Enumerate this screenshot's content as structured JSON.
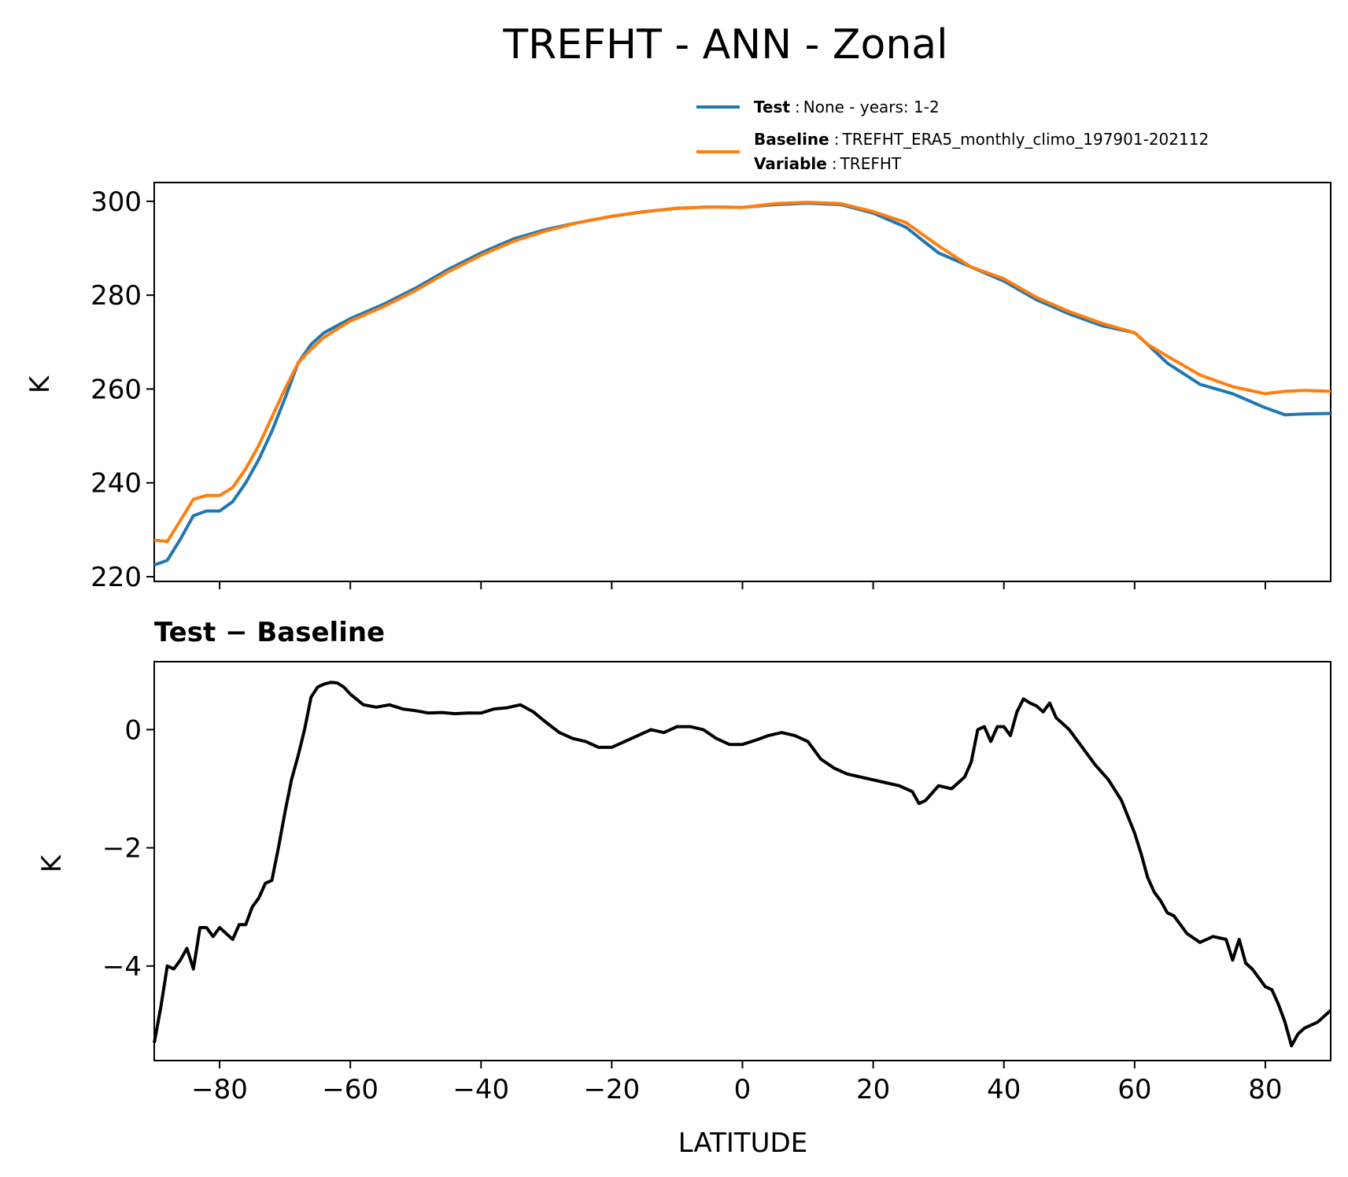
{
  "chart_data": [
    {
      "type": "line",
      "title": "TREFHT - ANN - Zonal",
      "xlabel": "",
      "ylabel": "K",
      "xlim": [
        -90,
        90
      ],
      "ylim": [
        219,
        304
      ],
      "yticks": [
        220,
        240,
        260,
        280,
        300
      ],
      "xticks": [
        -80,
        -60,
        -40,
        -20,
        0,
        20,
        40,
        60,
        80
      ],
      "legend": {
        "placement": "top-right",
        "entries": [
          {
            "bold": "Test",
            "sep": ":",
            "text": "None - years: 1-2",
            "color": "#1f77b4"
          },
          {
            "bold": "Baseline",
            "sep": ":",
            "text": "TREFHT_ERA5_monthly_climo_197901-202112",
            "bold2": "Variable",
            "text2": "TREFHT",
            "color": "#ff7f0e"
          }
        ]
      },
      "series": [
        {
          "name": "Test",
          "color": "#1f77b4",
          "x": [
            -90,
            -88,
            -86,
            -84,
            -82,
            -80,
            -78,
            -76,
            -74,
            -72,
            -70,
            -68,
            -66,
            -64,
            -62,
            -60,
            -55,
            -50,
            -45,
            -40,
            -35,
            -30,
            -25,
            -20,
            -15,
            -10,
            -5,
            0,
            5,
            10,
            15,
            20,
            25,
            30,
            35,
            40,
            45,
            50,
            55,
            60,
            62,
            65,
            70,
            75,
            80,
            83,
            86,
            90
          ],
          "values": [
            222.5,
            223.5,
            228,
            233,
            234,
            234,
            236,
            240,
            245,
            251,
            258,
            265.5,
            269.5,
            272,
            273.5,
            275,
            278,
            281.5,
            285.5,
            289,
            292,
            294,
            295.5,
            296.8,
            297.8,
            298.5,
            298.8,
            298.7,
            299.3,
            299.6,
            299.3,
            297.5,
            294.5,
            289,
            286,
            283,
            279,
            276,
            273.5,
            272,
            269.5,
            265.5,
            261,
            259,
            256,
            254.5,
            254.7,
            254.8
          ],
          "note": "curve values estimated from the plot"
        },
        {
          "name": "Baseline",
          "color": "#ff7f0e",
          "x": [
            -90,
            -88,
            -86,
            -84,
            -82,
            -80,
            -78,
            -76,
            -74,
            -72,
            -70,
            -68,
            -66,
            -64,
            -62,
            -60,
            -55,
            -50,
            -45,
            -40,
            -35,
            -30,
            -25,
            -20,
            -15,
            -10,
            -5,
            0,
            5,
            10,
            15,
            20,
            25,
            30,
            35,
            40,
            45,
            50,
            55,
            60,
            62,
            65,
            70,
            75,
            80,
            83,
            86,
            90
          ],
          "values": [
            227.8,
            227.5,
            232,
            236.5,
            237.3,
            237.3,
            239,
            243,
            248,
            254,
            260,
            265.5,
            268.5,
            271,
            272.8,
            274.5,
            277.5,
            281,
            285,
            288.5,
            291.5,
            293.7,
            295.5,
            296.8,
            297.8,
            298.5,
            298.8,
            298.7,
            299.5,
            299.8,
            299.5,
            297.8,
            295.5,
            290.5,
            286,
            283.5,
            279.5,
            276.5,
            274,
            272,
            269.5,
            267,
            263,
            260.5,
            259,
            259.5,
            259.7,
            259.5
          ],
          "note": "curve values estimated from the plot"
        }
      ]
    },
    {
      "type": "line",
      "title": "Test − Baseline",
      "xlabel": "LATITUDE",
      "ylabel": "K",
      "xlim": [
        -90,
        90
      ],
      "ylim": [
        -5.6,
        1.15
      ],
      "yticks": [
        -4,
        -2,
        0
      ],
      "ytick_labels": [
        "−4",
        "−2",
        "0"
      ],
      "xticks": [
        -80,
        -60,
        -40,
        -20,
        0,
        20,
        40,
        60,
        80
      ],
      "xtick_labels": [
        "−80",
        "−60",
        "−40",
        "−20",
        "0",
        "20",
        "40",
        "60",
        "80"
      ],
      "series": [
        {
          "name": "Test - Baseline",
          "color": "#000000",
          "x": [
            -90,
            -89,
            -88,
            -87,
            -86,
            -85,
            -84,
            -83,
            -82,
            -81,
            -80,
            -79,
            -78,
            -77,
            -76,
            -75,
            -74,
            -73,
            -72,
            -71,
            -70,
            -69,
            -68,
            -67,
            -66,
            -65,
            -64,
            -63,
            -62,
            -61,
            -60,
            -58,
            -56,
            -54,
            -52,
            -50,
            -48,
            -46,
            -44,
            -42,
            -40,
            -38,
            -36,
            -34,
            -32,
            -30,
            -28,
            -26,
            -24,
            -22,
            -20,
            -18,
            -16,
            -14,
            -12,
            -10,
            -8,
            -6,
            -4,
            -2,
            0,
            2,
            4,
            6,
            8,
            10,
            12,
            14,
            16,
            18,
            20,
            22,
            24,
            26,
            27,
            28,
            30,
            32,
            34,
            35,
            36,
            37,
            38,
            39,
            40,
            41,
            42,
            43,
            44,
            45,
            46,
            47,
            48,
            50,
            52,
            54,
            56,
            58,
            60,
            61,
            62,
            63,
            64,
            65,
            66,
            67,
            68,
            70,
            72,
            74,
            75,
            76,
            77,
            78,
            79,
            80,
            81,
            82,
            83,
            84,
            85,
            86,
            88,
            90
          ],
          "values": [
            -5.3,
            -4.7,
            -4.0,
            -4.05,
            -3.9,
            -3.7,
            -4.05,
            -3.35,
            -3.35,
            -3.5,
            -3.35,
            -3.45,
            -3.55,
            -3.3,
            -3.3,
            -3.0,
            -2.85,
            -2.6,
            -2.55,
            -2.0,
            -1.4,
            -0.85,
            -0.45,
            0.0,
            0.55,
            0.72,
            0.77,
            0.8,
            0.79,
            0.72,
            0.6,
            0.42,
            0.38,
            0.42,
            0.35,
            0.32,
            0.28,
            0.29,
            0.27,
            0.28,
            0.28,
            0.35,
            0.37,
            0.42,
            0.3,
            0.12,
            -0.05,
            -0.15,
            -0.2,
            -0.3,
            -0.3,
            -0.2,
            -0.1,
            0.0,
            -0.05,
            0.05,
            0.05,
            0.0,
            -0.15,
            -0.25,
            -0.25,
            -0.18,
            -0.1,
            -0.05,
            -0.1,
            -0.2,
            -0.5,
            -0.65,
            -0.75,
            -0.8,
            -0.85,
            -0.9,
            -0.95,
            -1.05,
            -1.25,
            -1.2,
            -0.95,
            -1.0,
            -0.8,
            -0.55,
            0.0,
            0.05,
            -0.2,
            0.05,
            0.05,
            -0.1,
            0.3,
            0.52,
            0.45,
            0.4,
            0.3,
            0.45,
            0.2,
            0.0,
            -0.3,
            -0.6,
            -0.85,
            -1.2,
            -1.75,
            -2.1,
            -2.5,
            -2.75,
            -2.9,
            -3.1,
            -3.15,
            -3.3,
            -3.45,
            -3.6,
            -3.5,
            -3.55,
            -3.9,
            -3.55,
            -3.95,
            -4.05,
            -4.2,
            -4.35,
            -4.4,
            -4.65,
            -4.95,
            -5.35,
            -5.15,
            -5.05,
            -4.95,
            -4.75
          ],
          "note": "curve values estimated from the plot"
        }
      ]
    }
  ]
}
